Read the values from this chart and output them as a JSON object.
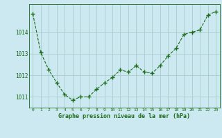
{
  "x": [
    0,
    1,
    2,
    3,
    4,
    5,
    6,
    7,
    8,
    9,
    10,
    11,
    12,
    13,
    14,
    15,
    16,
    17,
    18,
    19,
    20,
    21,
    22,
    23
  ],
  "y": [
    1014.85,
    1013.05,
    1012.25,
    1011.65,
    1011.1,
    1010.85,
    1011.0,
    1011.0,
    1011.35,
    1011.65,
    1011.9,
    1012.25,
    1012.15,
    1012.45,
    1012.15,
    1012.1,
    1012.45,
    1012.9,
    1013.25,
    1013.9,
    1014.0,
    1014.1,
    1014.8,
    1014.95
  ],
  "line_color": "#1a6b1a",
  "marker": "+",
  "marker_size": 4,
  "bg_color": "#cce8f0",
  "grid_color": "#aacccc",
  "xlabel": "Graphe pression niveau de la mer (hPa)",
  "xlabel_color": "#1a6b1a",
  "tick_color": "#1a6b1a",
  "ylim": [
    1010.5,
    1015.3
  ],
  "xlim": [
    -0.5,
    23.5
  ],
  "yticks": [
    1011,
    1012,
    1013,
    1014
  ],
  "xticks": [
    0,
    1,
    2,
    3,
    4,
    5,
    6,
    7,
    8,
    9,
    10,
    11,
    12,
    13,
    14,
    15,
    16,
    17,
    18,
    19,
    20,
    21,
    22,
    23
  ],
  "line_width": 0.8,
  "marker_color": "#1a6b1a",
  "marker_edge_width": 1.0
}
